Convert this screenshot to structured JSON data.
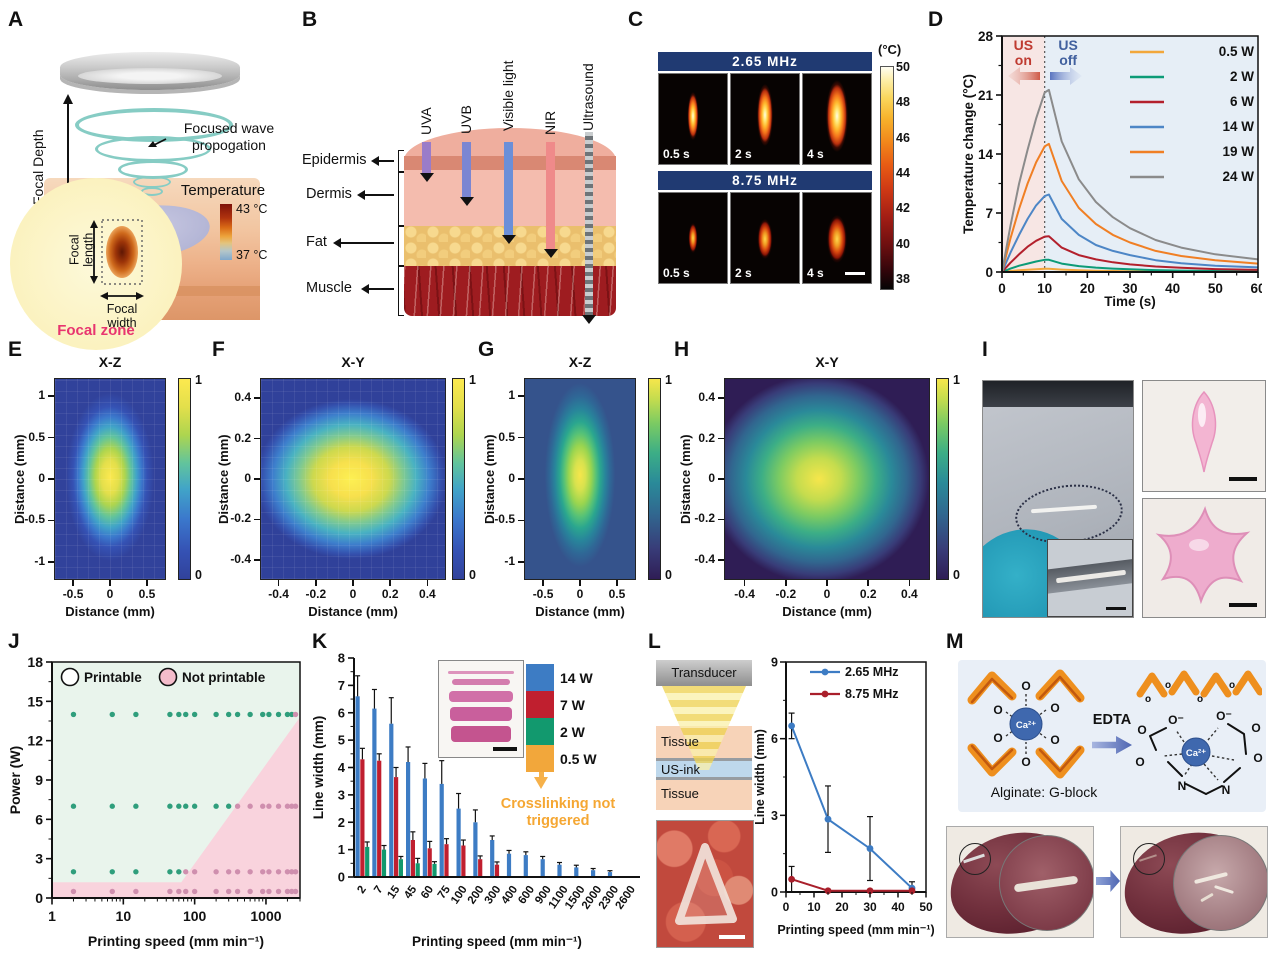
{
  "figure": {
    "background": "#ffffff"
  },
  "panels": {
    "A": {
      "letter": "A",
      "focal_depth": "Focal Depth",
      "wave_l1": "Focused wave",
      "wave_l2": "propogation",
      "temperature_title": "Temperature",
      "temp_high": "43 °C",
      "temp_low": "37 °C",
      "focal_length_l1": "Focal",
      "focal_length_l2": "length",
      "focal_width_l1": "Focal",
      "focal_width_l2": "width",
      "focal_zone": "Focal zone"
    },
    "B": {
      "letter": "B",
      "rays": [
        {
          "label": "UVA",
          "color": "#9a7cc9"
        },
        {
          "label": "UVB",
          "color": "#7b86d2"
        },
        {
          "label": "Visible light",
          "color": "#6b8fd8"
        },
        {
          "label": "NIR",
          "color": "#ef8a8a"
        },
        {
          "label": "Ultrasound",
          "color": "#8d9499"
        }
      ],
      "layers": [
        {
          "label": "Epidermis"
        },
        {
          "label": "Dermis"
        },
        {
          "label": "Fat"
        },
        {
          "label": "Muscle"
        }
      ]
    },
    "C": {
      "letter": "C",
      "groups": [
        {
          "title": "2.65 MHz",
          "frames": [
            "0.5 s",
            "2 s",
            "4 s"
          ]
        },
        {
          "title": "8.75 MHz",
          "frames": [
            "0.5 s",
            "2 s",
            "4 s"
          ]
        }
      ],
      "colorbar_unit": "(°C)",
      "colorbar_ticks": [
        50,
        48,
        46,
        44,
        42,
        40,
        38
      ]
    },
    "D": {
      "letter": "D",
      "us_on": [
        "US",
        "on"
      ],
      "us_off": [
        "US",
        "off"
      ]
    },
    "E": {
      "letter": "E"
    },
    "F": {
      "letter": "F"
    },
    "G": {
      "letter": "G"
    },
    "H": {
      "letter": "H"
    },
    "I": {
      "letter": "I"
    },
    "J": {
      "letter": "J",
      "legend": [
        {
          "label": "Printable",
          "fill": "#ffffff"
        },
        {
          "label": "Not printable",
          "fill": "#f4bccb"
        }
      ]
    },
    "K": {
      "letter": "K",
      "legend": [
        {
          "label": "14 W",
          "color": "#3d7cc4"
        },
        {
          "label": "7 W",
          "color": "#c01f2f"
        },
        {
          "label": "2 W",
          "color": "#12996e"
        },
        {
          "label": "0.5 W",
          "color": "#f2a73b"
        }
      ],
      "annotation_l1": "Crosslinking not",
      "annotation_l2": "triggered"
    },
    "L": {
      "letter": "L",
      "labels": {
        "transducer": "Transducer",
        "tissue_top": "Tissue",
        "us_ink": "US-ink",
        "tissue_bottom": "Tissue"
      }
    },
    "M": {
      "letter": "M",
      "edta": "EDTA",
      "alginate_label": "Alginate: G-block",
      "ca_ion": "Ca²⁺",
      "atom_o": "O",
      "atom_o_minus": "O⁻",
      "atom_o_small": "o",
      "atom_n": "N"
    }
  },
  "chart_data": [
    {
      "id": "D",
      "type": "line",
      "xlabel": "Time (s)",
      "ylabel": "Temperature change (°C)",
      "xlim": [
        0,
        60
      ],
      "ylim": [
        0,
        28
      ],
      "xticks": [
        0,
        10,
        20,
        30,
        40,
        50,
        60
      ],
      "yticks": [
        0,
        7,
        14,
        21,
        28
      ],
      "background": {
        "on_color": "#f7e6e4",
        "off_color": "#e6eef6",
        "divider_time": 10
      },
      "x": [
        0,
        2,
        4,
        6,
        8,
        10,
        11,
        14,
        18,
        22,
        26,
        30,
        36,
        42,
        50,
        60
      ],
      "series": [
        {
          "name": "0.5 W",
          "color": "#f2a73b",
          "values": [
            0,
            0.12,
            0.2,
            0.27,
            0.33,
            0.38,
            0.38,
            0.28,
            0.2,
            0.15,
            0.12,
            0.1,
            0.07,
            0.05,
            0.04,
            0.03
          ]
        },
        {
          "name": "2 W",
          "color": "#0c9b77",
          "values": [
            0,
            0.4,
            0.75,
            1.0,
            1.25,
            1.45,
            1.45,
            1.0,
            0.7,
            0.52,
            0.4,
            0.32,
            0.22,
            0.17,
            0.12,
            0.08
          ]
        },
        {
          "name": "6 W",
          "color": "#b3202c",
          "values": [
            0,
            1.1,
            2.1,
            3.0,
            3.7,
            4.2,
            4.25,
            2.9,
            2.0,
            1.5,
            1.15,
            0.9,
            0.65,
            0.5,
            0.35,
            0.25
          ]
        },
        {
          "name": "14 W",
          "color": "#4d86c6",
          "values": [
            0,
            2.3,
            4.4,
            6.3,
            7.9,
            9.0,
            9.2,
            6.3,
            4.4,
            3.2,
            2.5,
            2.0,
            1.4,
            1.05,
            0.75,
            0.55
          ]
        },
        {
          "name": "19 W",
          "color": "#f07f24",
          "values": [
            0,
            4.0,
            7.5,
            10.5,
            13.0,
            14.9,
            15.2,
            10.8,
            7.6,
            5.7,
            4.4,
            3.5,
            2.5,
            1.9,
            1.4,
            1.0
          ]
        },
        {
          "name": "24 W",
          "color": "#8b8b8b",
          "values": [
            0,
            5.5,
            10.5,
            14.5,
            18.2,
            21.3,
            21.6,
            15.5,
            11.0,
            8.3,
            6.5,
            5.2,
            3.8,
            2.9,
            2.1,
            1.5
          ]
        }
      ]
    },
    {
      "id": "E",
      "type": "heatmap",
      "title": "X-Z",
      "xlabel": "Distance (mm)",
      "ylabel": "Distance (mm)",
      "xticks": [
        -0.5,
        0,
        0.5
      ],
      "yticks": [
        1,
        0.5,
        0,
        -0.5,
        -1
      ],
      "colorbar_range": [
        0,
        1
      ],
      "colormap": "parula",
      "source": "measured",
      "peak_value": 1,
      "peak_at": [
        0,
        0
      ]
    },
    {
      "id": "F",
      "type": "heatmap",
      "title": "X-Y",
      "xlabel": "Distance (mm)",
      "ylabel": "Distance (mm)",
      "xticks": [
        -0.4,
        -0.2,
        0,
        0.2,
        0.4
      ],
      "yticks": [
        0.4,
        0.2,
        0,
        -0.2,
        -0.4
      ],
      "colorbar_range": [
        0,
        1
      ],
      "colormap": "parula",
      "source": "measured",
      "peak_value": 1,
      "peak_at": [
        0,
        0
      ]
    },
    {
      "id": "G",
      "type": "heatmap",
      "title": "X-Z",
      "xlabel": "Distance (mm)",
      "ylabel": "Distance (mm)",
      "xticks": [
        -0.5,
        0,
        0.5
      ],
      "yticks": [
        1,
        0.5,
        0,
        -0.5,
        -1
      ],
      "colorbar_range": [
        0,
        1
      ],
      "colormap": "viridis",
      "source": "simulated",
      "peak_value": 1,
      "peak_at": [
        0,
        0
      ]
    },
    {
      "id": "H",
      "type": "heatmap",
      "title": "X-Y",
      "xlabel": "Distance (mm)",
      "ylabel": "Distance (mm)",
      "xticks": [
        -0.4,
        -0.2,
        0,
        0.2,
        0.4
      ],
      "yticks": [
        0.4,
        0.2,
        0,
        -0.2,
        -0.4
      ],
      "colorbar_range": [
        0,
        1
      ],
      "colormap": "viridis",
      "source": "simulated",
      "peak_value": 1,
      "peak_at": [
        0,
        0
      ]
    },
    {
      "id": "J",
      "type": "scatter",
      "xlabel": "Printing speed (mm min⁻¹)",
      "ylabel": "Power (W)",
      "xscale": "log",
      "xlim": [
        1,
        3000
      ],
      "ylim": [
        0,
        18
      ],
      "xticks": [
        1,
        10,
        100,
        1000
      ],
      "yticks": [
        0,
        3,
        6,
        9,
        12,
        15,
        18
      ],
      "point_colors": {
        "printable": "#2f9e7c",
        "not_printable": "#cf8fae"
      },
      "region_colors": {
        "printable": "#e9f4ec",
        "not_printable": "#f9d3dd"
      },
      "boundary": {
        "strip_power": 1.2,
        "wedge_start_speed": 65,
        "wedge_end": {
          "speed": 3000,
          "power": 13.8
        }
      },
      "rows": [
        {
          "power": 14,
          "printable": [
            2,
            7,
            15,
            45,
            60,
            75,
            100,
            200,
            300,
            400,
            600,
            900,
            1100,
            1500,
            2000,
            2300
          ],
          "not_printable": [
            2600
          ]
        },
        {
          "power": 7,
          "printable": [
            2,
            7,
            15,
            45,
            60,
            75,
            100,
            200,
            300
          ],
          "not_printable": [
            400,
            600,
            900,
            1100,
            1500,
            2000,
            2300,
            2600
          ]
        },
        {
          "power": 2,
          "printable": [
            2,
            7,
            15,
            45,
            60
          ],
          "not_printable": [
            75,
            100,
            200,
            300,
            400,
            600,
            900,
            1100,
            1500,
            2000,
            2300,
            2600
          ]
        },
        {
          "power": 0.5,
          "printable": [],
          "not_printable": [
            2,
            7,
            15,
            45,
            60,
            75,
            100,
            200,
            300,
            400,
            600,
            900,
            1100,
            1500,
            2000,
            2300,
            2600
          ]
        }
      ]
    },
    {
      "id": "K",
      "type": "bar",
      "xlabel": "Printing speed (mm min⁻¹)",
      "ylabel": "Line width (mm)",
      "ylim": [
        0,
        8
      ],
      "yticks": [
        0,
        1,
        2,
        3,
        4,
        5,
        6,
        7,
        8
      ],
      "categories": [
        "2",
        "7",
        "15",
        "45",
        "60",
        "75",
        "100",
        "200",
        "300",
        "400",
        "600",
        "900",
        "1100",
        "1500",
        "2000",
        "2300",
        "2600"
      ],
      "series": [
        {
          "name": "14 W",
          "color": "#3d7cc4",
          "values": [
            6.6,
            6.15,
            5.6,
            4.2,
            3.6,
            3.4,
            2.5,
            2.0,
            1.35,
            0.85,
            0.8,
            0.65,
            0.45,
            0.35,
            0.25,
            0.18,
            null
          ],
          "errors": [
            0.75,
            0.7,
            0.95,
            0.55,
            0.55,
            0.85,
            0.55,
            0.45,
            0.15,
            0.12,
            0.12,
            0.1,
            0.08,
            0.08,
            0.06,
            0.05,
            null
          ]
        },
        {
          "name": "7 W",
          "color": "#c01f2f",
          "values": [
            4.3,
            4.25,
            3.65,
            1.35,
            1.05,
            1.2,
            1.15,
            0.65,
            0.45,
            null,
            null,
            null,
            null,
            null,
            null,
            null,
            null
          ],
          "errors": [
            0.4,
            0.25,
            0.35,
            0.3,
            0.25,
            0.2,
            0.2,
            0.12,
            0.1,
            null,
            null,
            null,
            null,
            null,
            null,
            null,
            null
          ]
        },
        {
          "name": "2 W",
          "color": "#12996e",
          "values": [
            1.1,
            1.0,
            0.65,
            0.5,
            0.48,
            null,
            null,
            null,
            null,
            null,
            null,
            null,
            null,
            null,
            null,
            null,
            null
          ],
          "errors": [
            0.18,
            0.15,
            0.1,
            0.18,
            0.08,
            null,
            null,
            null,
            null,
            null,
            null,
            null,
            null,
            null,
            null,
            null,
            null
          ]
        },
        {
          "name": "0.5 W",
          "color": "#f2a73b",
          "values": [
            null,
            null,
            null,
            null,
            null,
            null,
            null,
            null,
            null,
            null,
            null,
            null,
            null,
            null,
            null,
            null,
            null
          ],
          "errors": [
            null,
            null,
            null,
            null,
            null,
            null,
            null,
            null,
            null,
            null,
            null,
            null,
            null,
            null,
            null,
            null,
            null
          ],
          "note": "Crosslinking not triggered"
        }
      ]
    },
    {
      "id": "L",
      "type": "line",
      "xlabel": "Printing speed (mm min⁻¹)",
      "ylabel": "Line width (mm)",
      "xlim": [
        0,
        50
      ],
      "ylim": [
        0,
        9
      ],
      "xticks": [
        0,
        10,
        20,
        30,
        40,
        50
      ],
      "yticks": [
        0,
        3,
        6,
        9
      ],
      "series": [
        {
          "name": "2.65 MHz",
          "color": "#3d7cc4",
          "points": [
            {
              "x": 2,
              "y": 6.5,
              "err": 0.5
            },
            {
              "x": 15,
              "y": 2.85,
              "err": 1.3
            },
            {
              "x": 30,
              "y": 1.7,
              "err": 1.25
            },
            {
              "x": 45,
              "y": 0.15,
              "err": 0.25
            }
          ]
        },
        {
          "name": "8.75 MHz",
          "color": "#a91f2b",
          "points": [
            {
              "x": 2,
              "y": 0.5,
              "err": 0.5
            },
            {
              "x": 15,
              "y": 0.05,
              "err": 0.05
            },
            {
              "x": 30,
              "y": 0.05,
              "err": 0.05
            },
            {
              "x": 45,
              "y": 0.05,
              "err": 0.05
            }
          ]
        }
      ]
    }
  ]
}
